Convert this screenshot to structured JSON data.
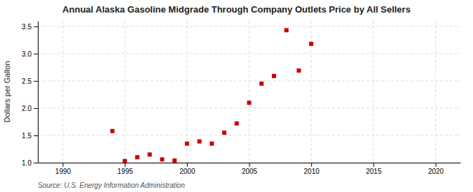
{
  "chart_data": {
    "type": "scatter",
    "title": "Annual Alaska Gasoline Midgrade Through Company Outlets Price by All Sellers",
    "ylabel": "Dollars per Gallon",
    "annotations": [
      "Source: U.S. Energy Information Administration"
    ],
    "x": [
      1994,
      1995,
      1996,
      1997,
      1998,
      1999,
      2000,
      2001,
      2002,
      2003,
      2004,
      2005,
      2006,
      2007,
      2008,
      2009,
      2010
    ],
    "values": [
      1.58,
      1.03,
      1.1,
      1.15,
      1.06,
      1.04,
      1.35,
      1.39,
      1.35,
      1.55,
      1.72,
      2.1,
      2.45,
      2.59,
      3.43,
      2.69,
      3.18
    ],
    "color": "#cc0000",
    "marker": "square",
    "xlim": [
      1988,
      2022
    ],
    "ylim": [
      1.0,
      3.6
    ],
    "xticks": [
      1990,
      1995,
      2000,
      2005,
      2010,
      2015,
      2020
    ],
    "yticks": [
      {
        "value": 1.0,
        "label": "1.0"
      },
      1.5,
      {
        "value": 2.0,
        "label": "2.0"
      },
      2.5,
      {
        "value": 3.0,
        "label": "3.0"
      },
      3.5
    ],
    "grid": true
  }
}
